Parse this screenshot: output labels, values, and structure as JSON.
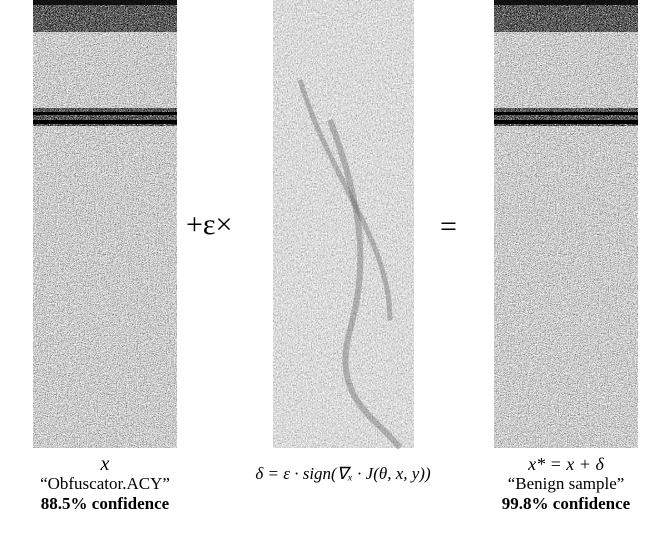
{
  "left": {
    "symbol": "x",
    "label": "“Obfuscator.ACY”",
    "confidence": "88.5% confidence"
  },
  "operator_plus": "+ε×",
  "middle": {
    "formula": "δ = ε · sign(∇ₓ · J(θ, x, y))"
  },
  "operator_equals": "=",
  "right": {
    "symbol": "x* = x + δ",
    "label": "“Benign sample”",
    "confidence": "99.8% confidence"
  }
}
